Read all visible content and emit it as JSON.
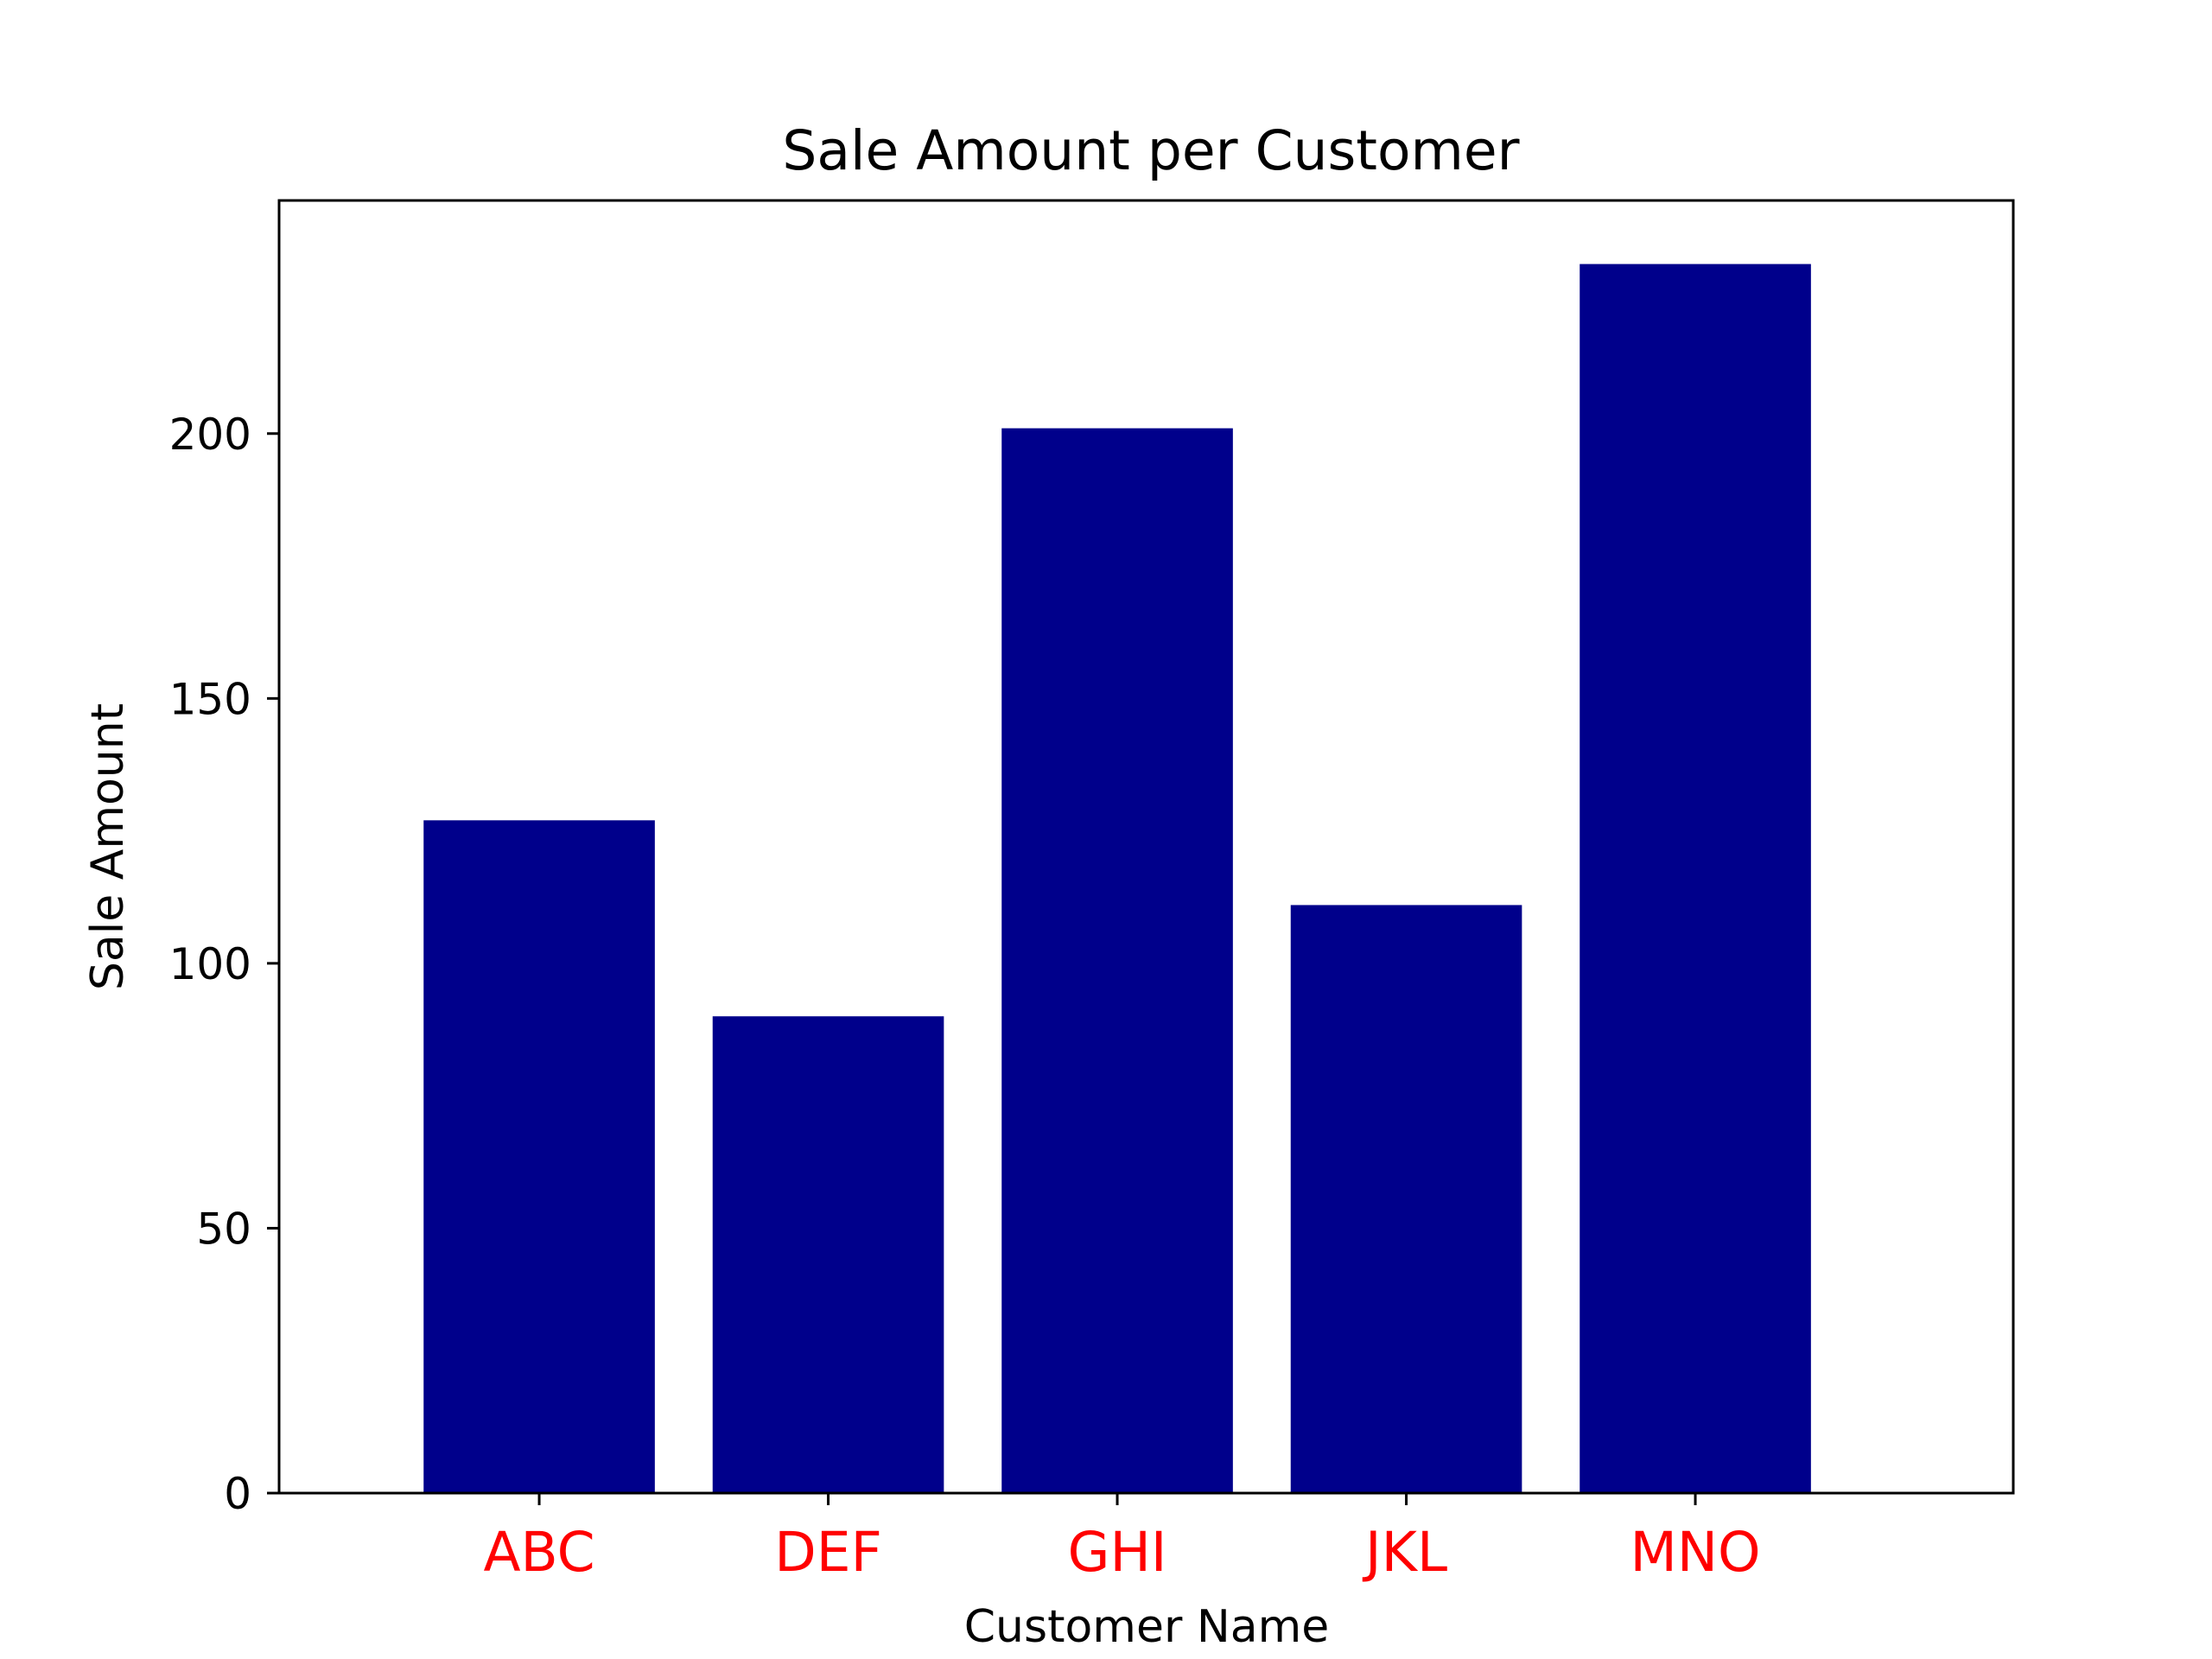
{
  "chart_data": {
    "type": "bar",
    "title": "Sale Amount per Customer",
    "xlabel": "Customer Name",
    "ylabel": "Sale Amount",
    "categories": [
      "ABC",
      "DEF",
      "GHI",
      "JKL",
      "MNO"
    ],
    "values": [
      127,
      90,
      201,
      111,
      232
    ],
    "ylim": [
      0,
      244
    ],
    "yticks": [
      0,
      50,
      100,
      150,
      200
    ],
    "grid": false,
    "colors": {
      "bar": "#00008b",
      "xtick_label": "#ff0000",
      "axis": "#000000"
    }
  }
}
